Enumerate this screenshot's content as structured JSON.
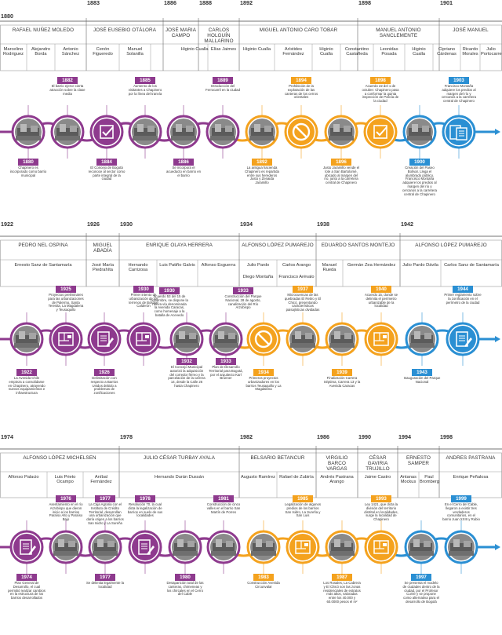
{
  "colors": {
    "purple": "#8E3A8E",
    "orange": "#F4A21E",
    "blue": "#2A8FD3",
    "frame": "#9a9a9a"
  },
  "years": [
    "1880",
    "1883",
    "1886",
    "1888",
    "1892",
    "1898",
    "1901",
    "1922",
    "1926",
    "1930",
    "1934",
    "1938",
    "1942",
    "1974",
    "1978",
    "1982",
    "1986",
    "1990",
    "1994",
    "1998"
  ],
  "presidents": [
    "RAFAEL NUÑEZ MOLEDO",
    "JOSÉ EUSEBIO OTÁLORA",
    "JOSÉ MARIA CAMPO",
    "CARLOS HOLGUÍN MALLARINO",
    "MIGUEL ANTONIO CARO TOBAR",
    "MANUEL ANTONIO SANCLEMENTE",
    "JOSÉ MANUEL",
    "PEDRO NEL OSPINA",
    "MIGUEL ABADÍA",
    "ENRIQUE OLAYA HERRERA",
    "ALFONSO LÓPEZ PUMAREJO",
    "EDUARDO SANTOS MONTEJO",
    "ALFONSO LÓPEZ PUMAREJO",
    "ALFONSO LÓPEZ MICHELSEN",
    "JULIO CÉSAR TURBAY AYALA",
    "BELSARIO BETANCUR",
    "VIRGILIO BARCO VARGAS",
    "CÉSAR GAVIRIA TRUJILLO",
    "ERNESTO SAMPER",
    "ANDRES PASTRANA"
  ],
  "mayors": [
    "Marcelino Rodriguez",
    "Alejandro Borda",
    "Antonio Sánchez",
    "Cenón Figueredo",
    "Manuel Solanilla",
    "Higinio Cualla",
    "Elías Jaimes",
    "Higinio Cualla",
    "Arístides Fernández",
    "Higinio Cualla",
    "Constantino Castañeda",
    "Leonidas Posada",
    "Higinio Cualla",
    "Cipriano Cárdenas",
    "Ricardo Morales",
    "Julio Portocarrero",
    "Ernesto Sanz de Santamaría",
    "José María Piedrahíta",
    "Hernando Carrizosa",
    "Luis Patiño Galvis",
    "Alfonso Esguerra",
    "Julio Pardo",
    "Carlos Arango",
    "Diego Montaña",
    "Francisco Arévalo",
    "Manuel Rueda",
    "Germán Zea Hernández",
    "Julio Pardo Dávila",
    "Carlos Sanz de Santamaría",
    "Alfonso Palacio",
    "Luis Prieto Ocampo",
    "Aníbal Fernández",
    "Hernando Durán Dussán",
    "Augusto Ramírez",
    "Rafael de Zubiría",
    "Andrés Pastrana Arango",
    "Jaime Castro",
    "Antanas Mockus",
    "Paul Bromberg",
    "Enrique Peñalosa"
  ],
  "events": [
    {
      "year": "1882",
      "text": "El barrio ejerce cierta atracción sobre la clase media"
    },
    {
      "year": "1880",
      "text": "Chapinero es incorporado como barrio municipal"
    },
    {
      "year": "1885",
      "text": "Aumento de los visitantes a Chapinero por la línea del tranvía"
    },
    {
      "year": "1884",
      "text": "El Concejo de Bogotá reconoce al sector como parte integral de la ciudad"
    },
    {
      "year": "1886",
      "text": "Se incorpora el acueducto en barrio en el barrio"
    },
    {
      "year": "1889",
      "text": "Introducción del Ferrocarril en la ciudad"
    },
    {
      "year": "1892",
      "text": "La antigua hacienda Chapinero es repartida entre sus herederos Justo y Zenaida Jaramillo"
    },
    {
      "year": "1894",
      "text": "Prohibición de la explotación de las canteras de los cerros orientales"
    },
    {
      "year": "1896",
      "text": "Justo Jaramillo vende el lote a San Bartolomé, ubicado al margen del río, junto a la carretera central de Chapinero"
    },
    {
      "year": "1898",
      "text": "Acuerdo 22 del 1 de octubre: Chapinero pasa a conformar la quinta inspección de Policía de la ciudad"
    },
    {
      "year": "1900",
      "text": "Creación del Paseo Bolívar. Llega el alumbrado público. Francisco Montaña adquiere los predios al margen del río y cercanos a la carretera central de Chapinero"
    },
    {
      "year": "1903",
      "text": "Francisco Montaña adquiere los predios al margen del río y cercanos a la carretera central de Chapinero"
    },
    {
      "year": "1922",
      "text": "La Avenida Chile empieza a consolidarse en Chapinero, atrayendo nuevos equipamientos e infraestructura"
    },
    {
      "year": "1925",
      "text": "Proyectos preliminares para las urbanizaciones de Palermo, Santa Teresita, La Magdalena y Teusaquillo"
    },
    {
      "year": "1926",
      "text": "Delimitación con respecto a Barrios Unidos debido a problemas de zonificaciones"
    },
    {
      "year": "1930",
      "text": "Primer intento de urbanización de los terrenos de Bosque Calderón"
    },
    {
      "year": "1930",
      "text": "Acuerdo 53 del 15 de noviembre, se dispone la nueva vía denominada la Avenida Caracas, como homenaje a la batalla de Acevedo"
    },
    {
      "year": "1932",
      "text": "El Concejo Municipal autorizó la adquisición del corredor férreo y la parcelación de la carrera 14, desde la Calle 26 hasta Chapinero"
    },
    {
      "year": "1933",
      "text": "Construcción del Parque Nacional, 28 de agosto, canalización del Río Arzobispo"
    },
    {
      "year": "1933",
      "text": "Plan de Desarrollo Territorial para Bogotá, por el arquitecto Karl Brunner"
    },
    {
      "year": "1934",
      "text": "Primeros proyectos urbanizadores en los barrios Teusaquillo y La Magdalena"
    },
    {
      "year": "1937",
      "text": "Microcuencas de las quebradas El Retiro y El Chicó, presentando características paisajísticas olvidadas"
    },
    {
      "year": "1939",
      "text": "Finalización Carrera Séptima, Carrera 13 y la Avenida Caracas"
    },
    {
      "year": "1940",
      "text": "Acuerdo 15, donde se delimita el perímetro urbanizable de la localidad"
    },
    {
      "year": "1943",
      "text": "Inauguración del Parque Nacional"
    },
    {
      "year": "1944",
      "text": "Primer reglamento sobre la zonificación en el perímetro de la ciudad"
    },
    {
      "year": "1976",
      "text": "Asentamiento en el río Arzobispo que dieron inicio a los barrios Paraíso Alto y Paraíso Bajo"
    },
    {
      "year": "1974",
      "text": "Plan General de Desarrollo, el cual permitió realizar cambios en la estructura de los barrios desarrollados"
    },
    {
      "year": "1977",
      "text": "La Caja Agraria con el Instituto de Crédito Territorial, desarrollan una urbanización que daría origen a los barrios San Isidro y La Sureña"
    },
    {
      "year": "1977",
      "text": "Se delimita legalmente la localidad"
    },
    {
      "year": "1978",
      "text": "Resolución 70, la cual dicta la legalización de barrios en suelo de sus localidades"
    },
    {
      "year": "1980",
      "text": "Desaparición total de las canteras, chimeneas y los chircales en el Cerro del Cable"
    },
    {
      "year": "1981",
      "text": "Construcción de cinco valles en el barrio San Martín de Porres"
    },
    {
      "year": "1983",
      "text": "Construcción Avenida Circunvalar"
    },
    {
      "year": "1985",
      "text": "Legalización de algunos predios de los barrios San Isidro, La Sureña y San Luis"
    },
    {
      "year": "1987",
      "text": "Los Rosales, La Cabrera y El Chicó son las zonas residenciales de estratos más altos, valoradas entre los 40.000 y 60.0000 pesos el m²"
    },
    {
      "year": "1993",
      "text": "Ley 1421, que dicta la división del territorio distrital en localidades, surge la localidad de Chapinero"
    },
    {
      "year": "1997",
      "text": "Se presenta el modelo de ciudades dentro de la ciudad, por el Profesor Currie y se propone como alternativa para el desarrollo de Bogotá"
    },
    {
      "year": "1999",
      "text": "En el Cerro del Cable, llegaron a existir tres verdaderos comunitarios, en el barrio Juan XXIII y Rubio"
    }
  ]
}
